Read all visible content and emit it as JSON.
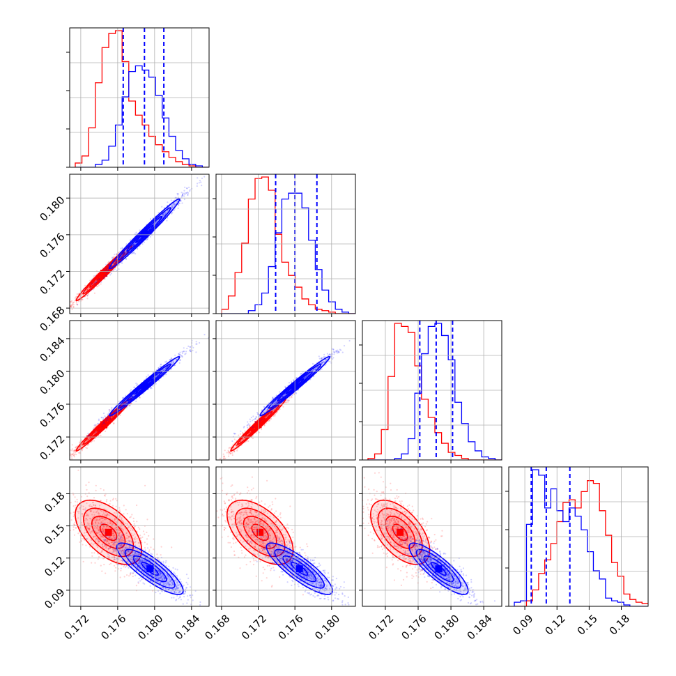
{
  "chart_data": {
    "type": "corner",
    "title": "",
    "series": [
      {
        "name": "",
        "color": "#ff0000"
      },
      {
        "name": "",
        "color": "#0000ff"
      }
    ],
    "quantiles": {
      "color": "#0000ff",
      "p0": [
        0.1766,
        0.1789,
        0.181
      ],
      "p1": [
        0.1739,
        0.176,
        0.1784
      ],
      "p2": [
        0.1762,
        0.1782,
        0.1802
      ],
      "p3": [
        0.096,
        0.11,
        0.132
      ]
    },
    "params": [
      {
        "range": [
          0.1708,
          0.1859
        ],
        "ticks": [
          "0.172",
          "0.176",
          "0.180",
          "0.184"
        ],
        "tick_values": [
          0.172,
          0.176,
          0.18,
          0.184
        ]
      },
      {
        "range": [
          0.1674,
          0.1826
        ],
        "ticks": [
          "0.168",
          "0.172",
          "0.176",
          "0.180"
        ],
        "tick_values": [
          0.168,
          0.172,
          0.176,
          0.18
        ]
      },
      {
        "range": [
          0.1692,
          0.1862
        ],
        "ticks": [
          "0.172",
          "0.176",
          "0.180",
          "0.184"
        ],
        "tick_values": [
          0.172,
          0.176,
          0.18,
          0.184
        ]
      },
      {
        "range": [
          0.075,
          0.205
        ],
        "ticks": [
          "0.09",
          "0.12",
          "0.15",
          "0.18"
        ],
        "tick_values": [
          0.09,
          0.12,
          0.15,
          0.18
        ]
      }
    ],
    "marginals": [
      {
        "param": 0,
        "red": [
          0.03,
          0.08,
          0.28,
          0.6,
          0.85,
          0.95,
          0.97,
          0.75,
          0.47,
          0.37,
          0.3,
          0.22,
          0.16,
          0.11,
          0.07,
          0.04,
          0.02,
          0.01,
          0,
          0
        ],
        "blue": [
          0,
          0,
          0,
          0.02,
          0.05,
          0.15,
          0.3,
          0.5,
          0.68,
          0.72,
          0.69,
          0.64,
          0.51,
          0.35,
          0.22,
          0.12,
          0.06,
          0.02,
          0.01,
          0
        ]
      },
      {
        "param": 1,
        "red": [
          0.03,
          0.12,
          0.28,
          0.48,
          0.78,
          0.92,
          0.93,
          0.84,
          0.54,
          0.35,
          0.26,
          0.18,
          0.1,
          0.06,
          0.03,
          0.02,
          0.01,
          0,
          0,
          0
        ],
        "blue": [
          0,
          0,
          0,
          0,
          0.02,
          0.06,
          0.14,
          0.32,
          0.55,
          0.78,
          0.82,
          0.82,
          0.72,
          0.5,
          0.3,
          0.16,
          0.08,
          0.03,
          0.01,
          0
        ]
      },
      {
        "param": 2,
        "red": [
          0.01,
          0.04,
          0.2,
          0.55,
          0.9,
          0.88,
          0.84,
          0.62,
          0.4,
          0.28,
          0.18,
          0.11,
          0.05,
          0.03,
          0.01,
          0,
          0,
          0,
          0,
          0
        ],
        "blue": [
          0,
          0,
          0,
          0,
          0.01,
          0.04,
          0.14,
          0.44,
          0.7,
          0.88,
          0.9,
          0.82,
          0.66,
          0.38,
          0.24,
          0.12,
          0.06,
          0.02,
          0.01,
          0
        ]
      },
      {
        "param": 3,
        "red": [
          0,
          0,
          0.04,
          0.12,
          0.24,
          0.34,
          0.46,
          0.62,
          0.76,
          0.78,
          0.72,
          0.84,
          0.92,
          0.9,
          0.7,
          0.52,
          0.32,
          0.22,
          0.09,
          0.05,
          0.03,
          0.02
        ],
        "blue": [
          0.03,
          0.04,
          0.6,
          1.0,
          0.96,
          0.72,
          0.86,
          0.7,
          0.62,
          0.72,
          0.66,
          0.56,
          0.4,
          0.26,
          0.2,
          0.06,
          0.04,
          0.03,
          0.01,
          0,
          0,
          0
        ]
      }
    ],
    "pairs": [
      {
        "x": 0,
        "y": 1,
        "red": {
          "mean": [
            0.1745,
            0.1718
          ],
          "sd": [
            0.0015,
            0.0015
          ],
          "corr": 0.985
        },
        "blue": {
          "mean": [
            0.1789,
            0.1761
          ],
          "sd": [
            0.0019,
            0.0019
          ],
          "corr": 0.985
        }
      },
      {
        "x": 0,
        "y": 2,
        "red": {
          "mean": [
            0.1745,
            0.1735
          ],
          "sd": [
            0.0015,
            0.0016
          ],
          "corr": 0.985
        },
        "blue": {
          "mean": [
            0.1789,
            0.1782
          ],
          "sd": [
            0.0019,
            0.0018
          ],
          "corr": 0.985
        }
      },
      {
        "x": 1,
        "y": 2,
        "red": {
          "mean": [
            0.172,
            0.1735
          ],
          "sd": [
            0.0015,
            0.0016
          ],
          "corr": 0.985
        },
        "blue": {
          "mean": [
            0.176,
            0.1782
          ],
          "sd": [
            0.0019,
            0.0018
          ],
          "corr": 0.985
        }
      },
      {
        "x": 0,
        "y": 3,
        "red": {
          "mean": [
            0.175,
            0.144
          ],
          "sd": [
            0.0018,
            0.015
          ],
          "corr": -0.55
        },
        "blue": {
          "mean": [
            0.1795,
            0.11
          ],
          "sd": [
            0.0018,
            0.012
          ],
          "corr": -0.85
        }
      },
      {
        "x": 1,
        "y": 3,
        "red": {
          "mean": [
            0.1722,
            0.144
          ],
          "sd": [
            0.0018,
            0.015
          ],
          "corr": -0.55
        },
        "blue": {
          "mean": [
            0.1765,
            0.11
          ],
          "sd": [
            0.0018,
            0.012
          ],
          "corr": -0.85
        }
      },
      {
        "x": 2,
        "y": 3,
        "red": {
          "mean": [
            0.1738,
            0.144
          ],
          "sd": [
            0.0018,
            0.015
          ],
          "corr": -0.55
        },
        "blue": {
          "mean": [
            0.1785,
            0.11
          ],
          "sd": [
            0.0018,
            0.012
          ],
          "corr": -0.85
        }
      }
    ],
    "contour_levels_sigma": [
      0.5,
      1.0,
      1.5,
      2.0
    ],
    "grid": true,
    "legend": false
  }
}
